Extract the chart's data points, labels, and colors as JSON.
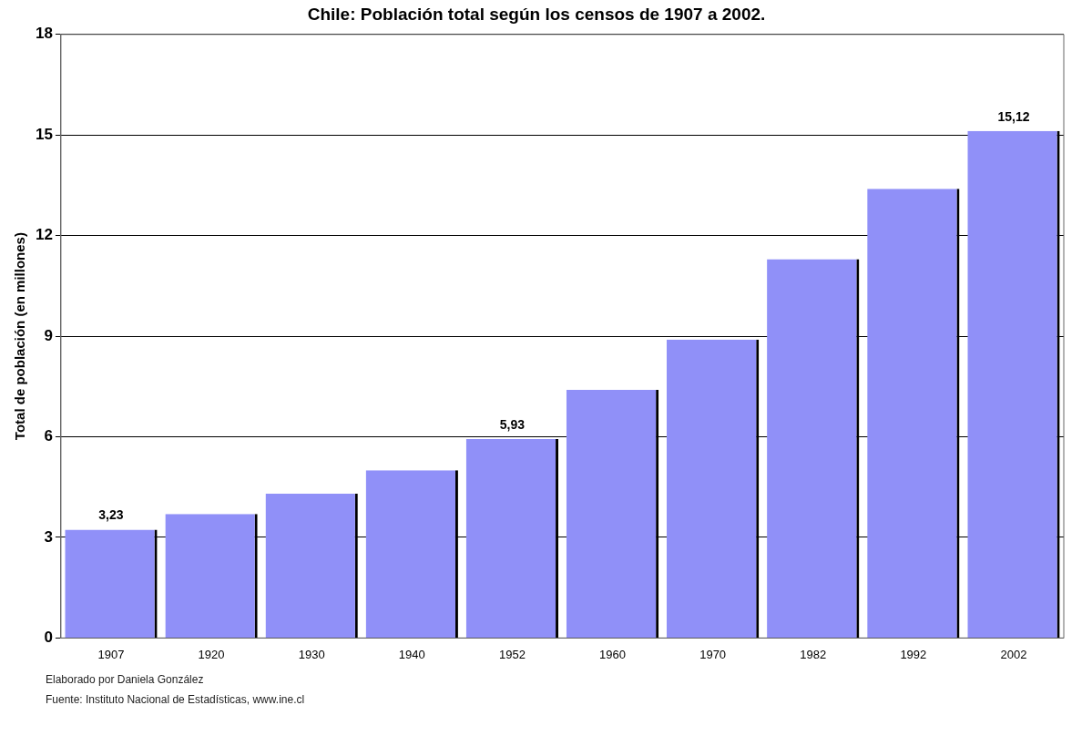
{
  "chart_data": {
    "type": "bar",
    "title": "Chile: Población total según los censos de 1907 a 2002.",
    "ylabel": "Total de población (en millones)",
    "categories": [
      "1907",
      "1920",
      "1930",
      "1940",
      "1952",
      "1960",
      "1970",
      "1982",
      "1992",
      "2002"
    ],
    "values": [
      3.23,
      3.7,
      4.3,
      5.0,
      5.93,
      7.4,
      8.9,
      11.3,
      13.4,
      15.12
    ],
    "value_labels": [
      "3,23",
      null,
      null,
      null,
      "5,93",
      null,
      null,
      null,
      null,
      "15,12"
    ],
    "color": "#9090f8",
    "ylim": [
      0,
      18
    ],
    "yticks": [
      0,
      3,
      6,
      9,
      12,
      15,
      18
    ],
    "grid": "y",
    "legend": false,
    "annotations": [
      "Elaborado por Daniela González",
      "Fuente: Instituto Nacional de Estadísticas, www.ine.cl"
    ]
  }
}
